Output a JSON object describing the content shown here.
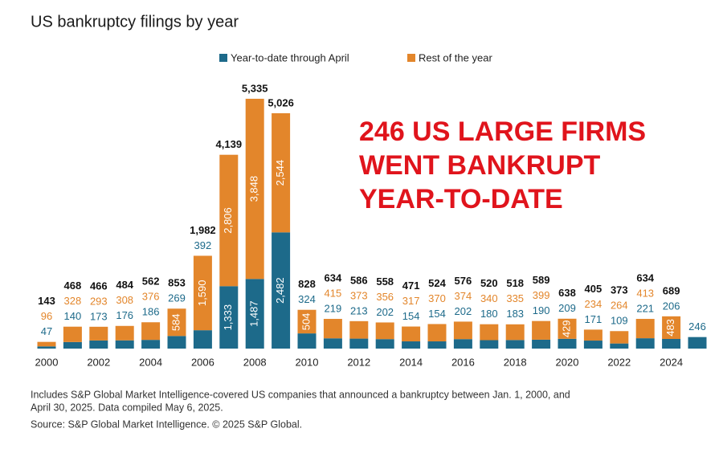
{
  "chart_data": {
    "type": "stacked-bar",
    "title": "US bankruptcy filings by year",
    "categories": [
      "2000",
      null,
      "2002",
      null,
      "2004",
      null,
      "2006",
      null,
      "2008",
      null,
      "2010",
      null,
      "2012",
      null,
      "2014",
      null,
      "2016",
      null,
      "2018",
      null,
      "2020",
      null,
      "2022",
      null,
      "2024",
      null
    ],
    "series": [
      {
        "name": "Year-to-date through April",
        "color": "#1d6a8a",
        "values": [
          47,
          140,
          173,
          176,
          186,
          269,
          392,
          1333,
          1487,
          2482,
          324,
          219,
          213,
          202,
          154,
          154,
          202,
          180,
          183,
          190,
          209,
          171,
          109,
          221,
          206,
          246
        ],
        "value_labels": [
          "47",
          "140",
          "173",
          "176",
          "186",
          "269",
          "392",
          "1,333",
          "1,487",
          "2,482",
          "324",
          "219",
          "213",
          "202",
          "154",
          "154",
          "202",
          "180",
          "183",
          "190",
          "209",
          "171",
          "109",
          "221",
          "206",
          "246"
        ]
      },
      {
        "name": "Rest of the year",
        "color": "#e3862b",
        "values": [
          96,
          328,
          293,
          308,
          376,
          584,
          1590,
          2806,
          3848,
          2544,
          504,
          415,
          373,
          356,
          317,
          370,
          374,
          340,
          335,
          399,
          429,
          234,
          264,
          413,
          483,
          null
        ],
        "value_labels": [
          "96",
          "328",
          "293",
          "308",
          "376",
          "584",
          "1,590",
          "2,806",
          "3,848",
          "2,544",
          "504",
          "415",
          "373",
          "356",
          "317",
          "370",
          "374",
          "340",
          "335",
          "399",
          "429",
          "234",
          "264",
          "413",
          "483",
          null
        ]
      }
    ],
    "totals": {
      "values": [
        143,
        468,
        466,
        484,
        562,
        853,
        1982,
        4139,
        5335,
        5026,
        828,
        634,
        586,
        558,
        471,
        524,
        576,
        520,
        518,
        589,
        638,
        405,
        373,
        634,
        689,
        null
      ],
      "value_labels": [
        "143",
        "468",
        "466",
        "484",
        "562",
        "853",
        "1,982",
        "4,139",
        "5,335",
        "5,026",
        "828",
        "634",
        "586",
        "558",
        "471",
        "524",
        "576",
        "520",
        "518",
        "589",
        "638",
        "405",
        "373",
        "634",
        "689",
        null
      ]
    },
    "annotation": {
      "lines": [
        "246 US LARGE FIRMS",
        "WENT BANKRUPT",
        "YEAR-TO-DATE"
      ],
      "color": "#e0141c"
    },
    "notes": [
      "Includes S&P Global Market Intelligence-covered US companies that announced a bankruptcy between Jan. 1, 2000, and",
      "April 30, 2025.  Data compiled May 6, 2025.",
      "Source: S&P Global Market Intelligence.  © 2025 S&P Global."
    ]
  }
}
